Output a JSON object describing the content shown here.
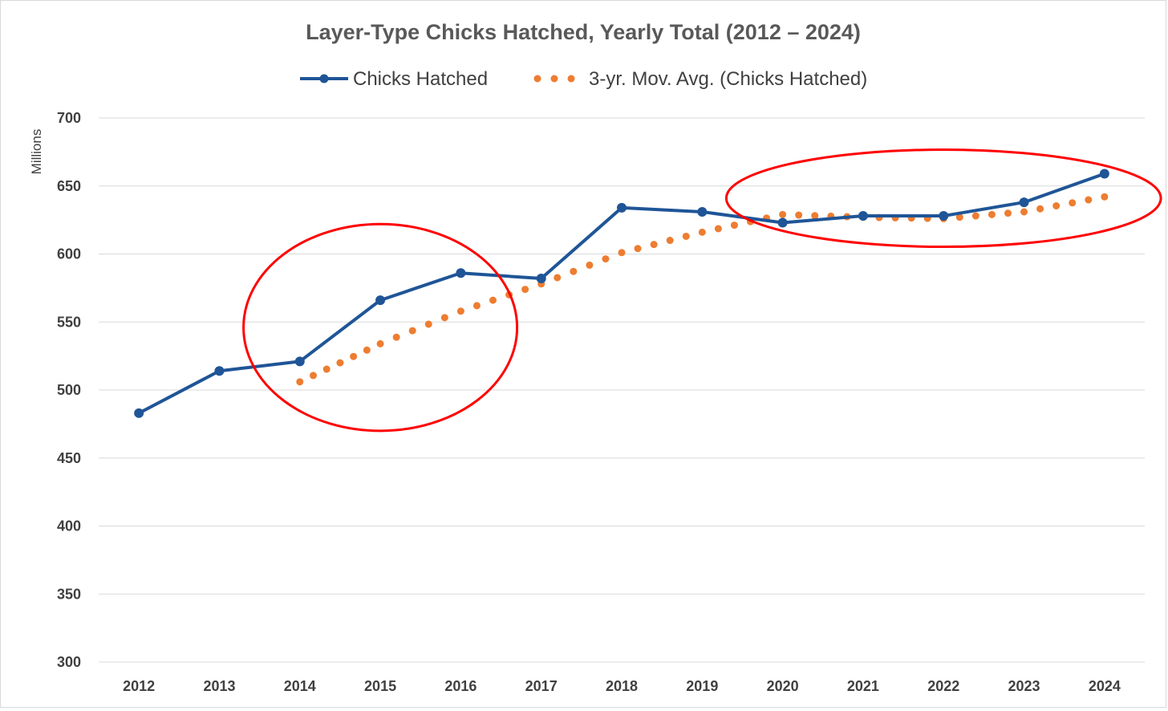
{
  "chart_data": {
    "type": "line",
    "title": "Layer-Type Chicks Hatched, Yearly Total (2012 – 2024)",
    "ylabel": "Millions",
    "xlabel": "",
    "categories": [
      "2012",
      "2013",
      "2014",
      "2015",
      "2016",
      "2017",
      "2018",
      "2019",
      "2020",
      "2021",
      "2022",
      "2023",
      "2024"
    ],
    "ylim": [
      300,
      700
    ],
    "yticks": [
      300,
      350,
      400,
      450,
      500,
      550,
      600,
      650,
      700
    ],
    "grid": true,
    "legend_position": "top",
    "series": [
      {
        "name": "Chicks Hatched",
        "style": "solid-line-with-markers",
        "color": "#1f5597",
        "values": [
          483,
          514,
          521,
          566,
          586,
          582,
          634,
          631,
          623,
          628,
          628,
          638,
          659
        ]
      },
      {
        "name": "3-yr. Mov. Avg. (Chicks Hatched)",
        "style": "dotted-trendline",
        "color": "#ed7d31",
        "values": [
          null,
          null,
          506,
          534,
          558,
          578,
          601,
          616,
          629,
          627,
          626,
          631,
          642
        ]
      }
    ],
    "annotations": [
      {
        "shape": "ellipse",
        "color": "#ff0000",
        "around_years": [
          "2014",
          "2016"
        ]
      },
      {
        "shape": "ellipse",
        "color": "#ff0000",
        "around_years": [
          "2020",
          "2024"
        ]
      }
    ]
  }
}
